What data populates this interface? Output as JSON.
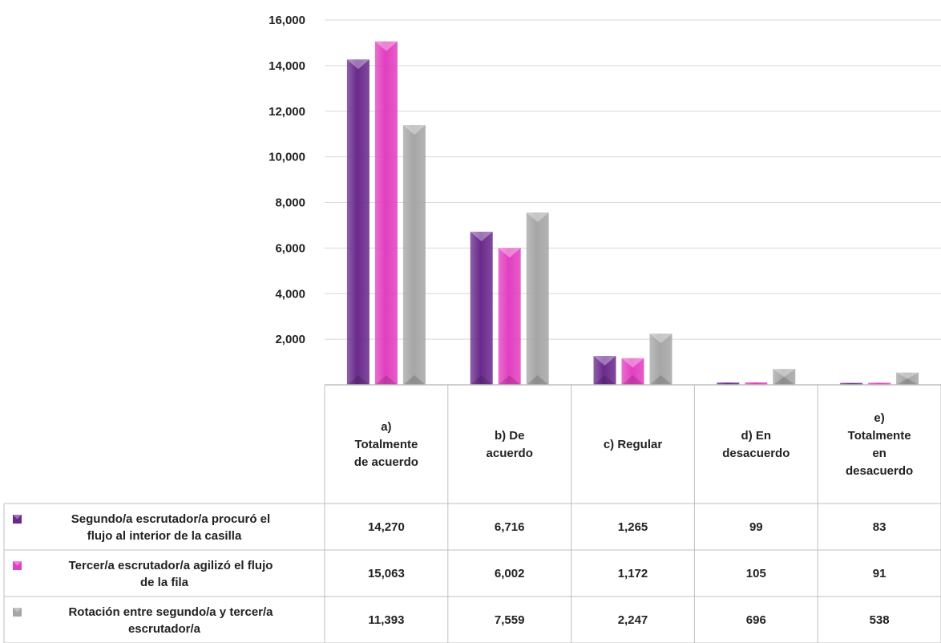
{
  "chart_data": {
    "type": "bar",
    "categories": [
      "a) Totalmente de acuerdo",
      "b) De acuerdo",
      "c) Regular",
      "d) En desacuerdo",
      "e) Totalmente en desacuerdo"
    ],
    "category_lines": [
      [
        "a)",
        "Totalmente",
        "de acuerdo"
      ],
      [
        "b) De",
        "acuerdo"
      ],
      [
        "c) Regular"
      ],
      [
        "d) En",
        "desacuerdo"
      ],
      [
        "e)",
        "Totalmente",
        "en",
        "desacuerdo"
      ]
    ],
    "series": [
      {
        "name": "Segundo/a escrutador/a procuró el flujo al interior de la casilla",
        "name_lines": [
          "Segundo/a escrutador/a procuró el",
          "flujo al interior de la casilla"
        ],
        "color": "#6a2a8c",
        "values": [
          14270,
          6716,
          1265,
          99,
          83
        ],
        "labels": [
          "14,270",
          "6,716",
          "1,265",
          "99",
          "83"
        ]
      },
      {
        "name": "Tercer/a escrutador/a agilizó el flujo de la fila",
        "name_lines": [
          "Tercer/a escrutador/a agilizó el flujo",
          "de la fila"
        ],
        "color": "#e23fc0",
        "values": [
          15063,
          6002,
          1172,
          105,
          91
        ],
        "labels": [
          "15,063",
          "6,002",
          "1,172",
          "105",
          "91"
        ]
      },
      {
        "name": "Rotación entre segundo/a y tercer/a escrutador/a",
        "name_lines": [
          "Rotación entre segundo/a y tercer/a",
          "escrutador/a"
        ],
        "color": "#a6a6a6",
        "values": [
          11393,
          7559,
          2247,
          696,
          538
        ],
        "labels": [
          "11,393",
          "7,559",
          "2,247",
          "696",
          "538"
        ]
      }
    ],
    "y_ticks": [
      2000,
      4000,
      6000,
      8000,
      10000,
      12000,
      14000,
      16000
    ],
    "y_tick_labels": [
      "2,000",
      "4,000",
      "6,000",
      "8,000",
      "10,000",
      "12,000",
      "14,000",
      "16,000"
    ],
    "ylim": [
      0,
      16000
    ],
    "grid": true,
    "legend": "data-table"
  }
}
